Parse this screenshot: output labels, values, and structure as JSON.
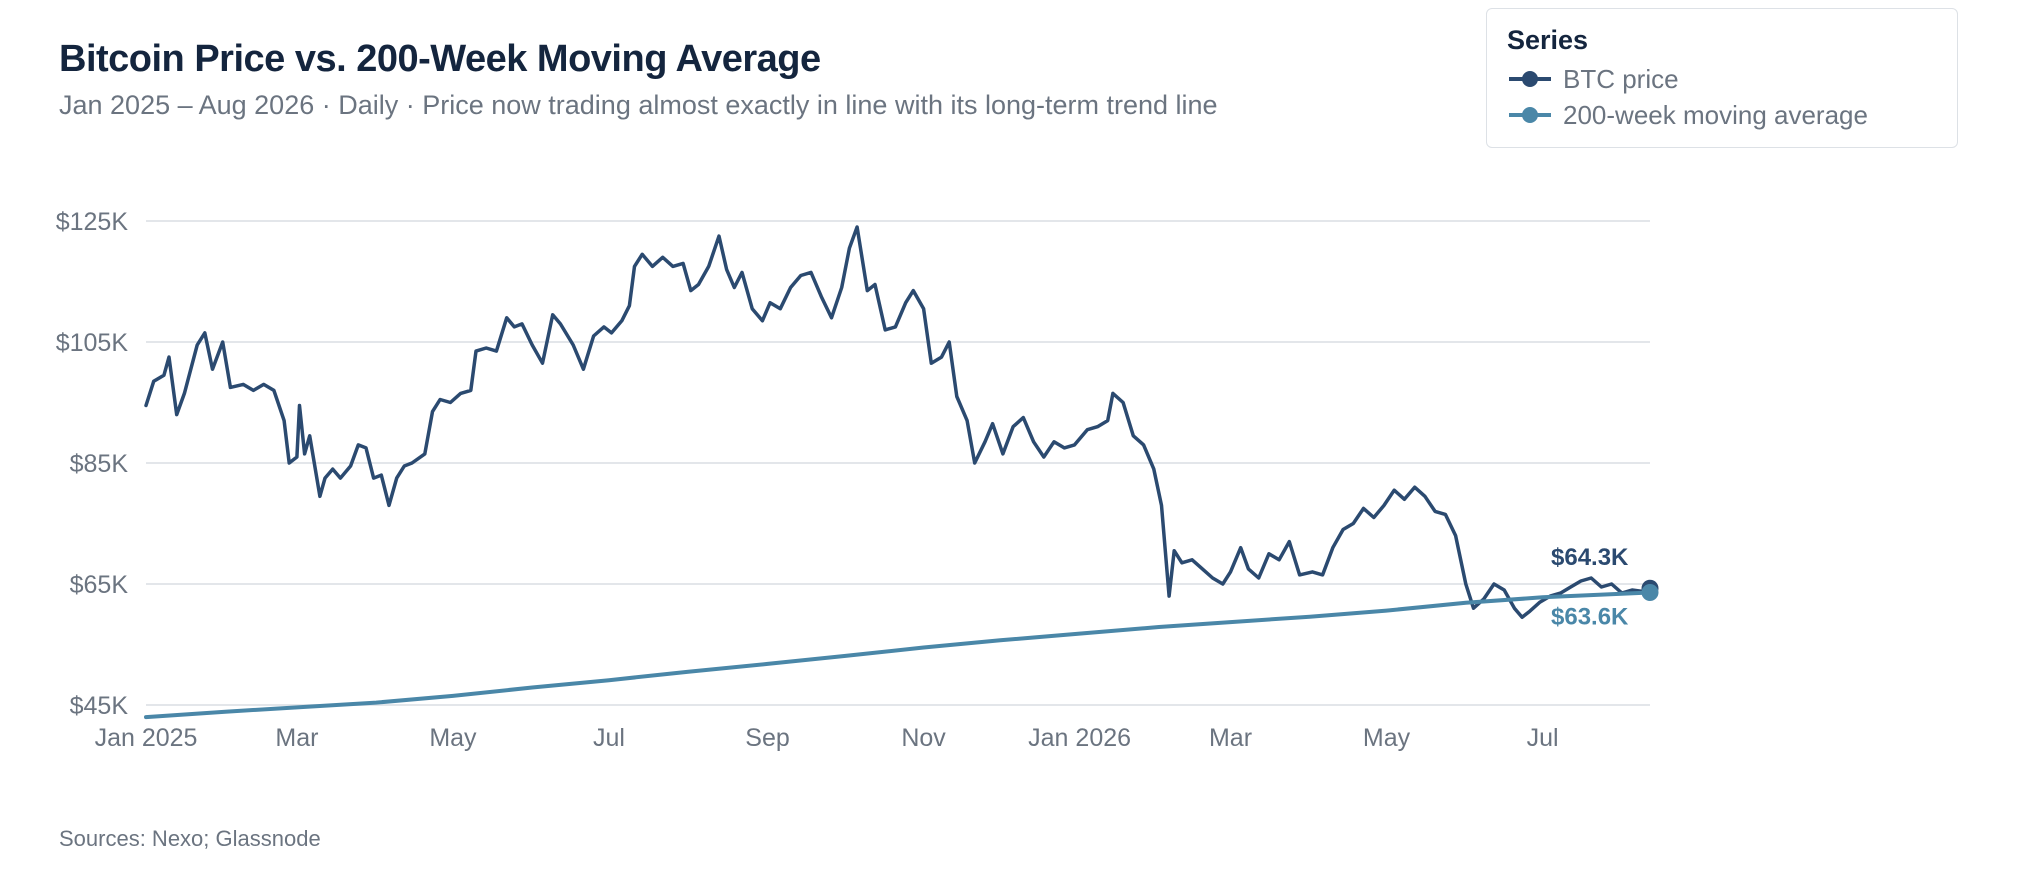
{
  "chart_data": {
    "type": "line",
    "title": "Bitcoin Price vs. 200-Week Moving Average",
    "subtitle": "Jan 2025 – Aug 2026 · Daily · Price now trading almost exactly in line with its long-term trend line",
    "source": "Sources: Nexo; Glassnode",
    "legend_title": "Series",
    "legend_position": "top-right",
    "grid": true,
    "x_range": [
      "2025-01-01",
      "2026-08-12"
    ],
    "y_range": [
      45000,
      125000
    ],
    "y_ticks": [
      {
        "value": 125000,
        "label": "$125K"
      },
      {
        "value": 105000,
        "label": "$105K"
      },
      {
        "value": 85000,
        "label": "$85K"
      },
      {
        "value": 65000,
        "label": "$65K"
      },
      {
        "value": 45000,
        "label": "$45K"
      }
    ],
    "x_ticks": [
      {
        "value": "2025-01-01",
        "label": "Jan 2025"
      },
      {
        "value": "2025-03-01",
        "label": "Mar"
      },
      {
        "value": "2025-05-01",
        "label": "May"
      },
      {
        "value": "2025-07-01",
        "label": "Jul"
      },
      {
        "value": "2025-09-01",
        "label": "Sep"
      },
      {
        "value": "2025-11-01",
        "label": "Nov"
      },
      {
        "value": "2026-01-01",
        "label": "Jan 2026"
      },
      {
        "value": "2026-03-01",
        "label": "Mar"
      },
      {
        "value": "2026-05-01",
        "label": "May"
      },
      {
        "value": "2026-07-01",
        "label": "Jul"
      }
    ],
    "series": [
      {
        "name": "BTC price",
        "color": "#2b4a70",
        "end_label": "$64.3K",
        "points": [
          [
            "2025-01-01",
            94500
          ],
          [
            "2025-01-04",
            98500
          ],
          [
            "2025-01-08",
            99500
          ],
          [
            "2025-01-10",
            102500
          ],
          [
            "2025-01-13",
            93000
          ],
          [
            "2025-01-16",
            96500
          ],
          [
            "2025-01-21",
            104500
          ],
          [
            "2025-01-24",
            106500
          ],
          [
            "2025-01-27",
            100500
          ],
          [
            "2025-01-31",
            105000
          ],
          [
            "2025-02-03",
            97500
          ],
          [
            "2025-02-08",
            98000
          ],
          [
            "2025-02-12",
            97000
          ],
          [
            "2025-02-16",
            98000
          ],
          [
            "2025-02-20",
            97000
          ],
          [
            "2025-02-24",
            92000
          ],
          [
            "2025-02-26",
            85000
          ],
          [
            "2025-03-01",
            86000
          ],
          [
            "2025-03-02",
            94500
          ],
          [
            "2025-03-04",
            86500
          ],
          [
            "2025-03-06",
            89500
          ],
          [
            "2025-03-10",
            79500
          ],
          [
            "2025-03-12",
            82500
          ],
          [
            "2025-03-15",
            84000
          ],
          [
            "2025-03-18",
            82500
          ],
          [
            "2025-03-22",
            84500
          ],
          [
            "2025-03-25",
            88000
          ],
          [
            "2025-03-28",
            87500
          ],
          [
            "2025-03-31",
            82500
          ],
          [
            "2025-04-03",
            83000
          ],
          [
            "2025-04-06",
            78000
          ],
          [
            "2025-04-09",
            82500
          ],
          [
            "2025-04-12",
            84500
          ],
          [
            "2025-04-15",
            85000
          ],
          [
            "2025-04-20",
            86500
          ],
          [
            "2025-04-23",
            93500
          ],
          [
            "2025-04-26",
            95500
          ],
          [
            "2025-04-30",
            95000
          ],
          [
            "2025-05-04",
            96500
          ],
          [
            "2025-05-08",
            97000
          ],
          [
            "2025-05-10",
            103500
          ],
          [
            "2025-05-14",
            104000
          ],
          [
            "2025-05-18",
            103500
          ],
          [
            "2025-05-22",
            109000
          ],
          [
            "2025-05-25",
            107500
          ],
          [
            "2025-05-28",
            108000
          ],
          [
            "2025-06-01",
            104500
          ],
          [
            "2025-06-05",
            101500
          ],
          [
            "2025-06-09",
            109500
          ],
          [
            "2025-06-12",
            108000
          ],
          [
            "2025-06-17",
            104500
          ],
          [
            "2025-06-21",
            100500
          ],
          [
            "2025-06-25",
            106000
          ],
          [
            "2025-06-29",
            107500
          ],
          [
            "2025-07-02",
            106500
          ],
          [
            "2025-07-06",
            108500
          ],
          [
            "2025-07-09",
            111000
          ],
          [
            "2025-07-11",
            117500
          ],
          [
            "2025-07-14",
            119500
          ],
          [
            "2025-07-18",
            117500
          ],
          [
            "2025-07-22",
            119000
          ],
          [
            "2025-07-26",
            117500
          ],
          [
            "2025-07-30",
            118000
          ],
          [
            "2025-08-02",
            113500
          ],
          [
            "2025-08-05",
            114500
          ],
          [
            "2025-08-09",
            117500
          ],
          [
            "2025-08-13",
            122500
          ],
          [
            "2025-08-16",
            117000
          ],
          [
            "2025-08-19",
            114000
          ],
          [
            "2025-08-22",
            116500
          ],
          [
            "2025-08-26",
            110500
          ],
          [
            "2025-08-30",
            108500
          ],
          [
            "2025-09-02",
            111500
          ],
          [
            "2025-09-06",
            110500
          ],
          [
            "2025-09-10",
            114000
          ],
          [
            "2025-09-14",
            116000
          ],
          [
            "2025-09-18",
            116500
          ],
          [
            "2025-09-22",
            112500
          ],
          [
            "2025-09-26",
            109000
          ],
          [
            "2025-09-30",
            114000
          ],
          [
            "2025-10-03",
            120500
          ],
          [
            "2025-10-06",
            124000
          ],
          [
            "2025-10-10",
            113500
          ],
          [
            "2025-10-13",
            114500
          ],
          [
            "2025-10-17",
            107000
          ],
          [
            "2025-10-21",
            107500
          ],
          [
            "2025-10-25",
            111500
          ],
          [
            "2025-10-28",
            113500
          ],
          [
            "2025-11-01",
            110500
          ],
          [
            "2025-11-04",
            101500
          ],
          [
            "2025-11-08",
            102500
          ],
          [
            "2025-11-11",
            105000
          ],
          [
            "2025-11-14",
            96000
          ],
          [
            "2025-11-18",
            92000
          ],
          [
            "2025-11-21",
            85000
          ],
          [
            "2025-11-25",
            88500
          ],
          [
            "2025-11-28",
            91500
          ],
          [
            "2025-12-02",
            86500
          ],
          [
            "2025-12-06",
            91000
          ],
          [
            "2025-12-10",
            92500
          ],
          [
            "2025-12-14",
            88500
          ],
          [
            "2025-12-18",
            86000
          ],
          [
            "2025-12-22",
            88500
          ],
          [
            "2025-12-26",
            87500
          ],
          [
            "2025-12-30",
            88000
          ],
          [
            "2026-01-04",
            90500
          ],
          [
            "2026-01-08",
            91000
          ],
          [
            "2026-01-12",
            92000
          ],
          [
            "2026-01-14",
            96500
          ],
          [
            "2026-01-18",
            95000
          ],
          [
            "2026-01-22",
            89500
          ],
          [
            "2026-01-26",
            88000
          ],
          [
            "2026-01-30",
            84000
          ],
          [
            "2026-02-02",
            78000
          ],
          [
            "2026-02-05",
            63000
          ],
          [
            "2026-02-07",
            70500
          ],
          [
            "2026-02-10",
            68500
          ],
          [
            "2026-02-14",
            69000
          ],
          [
            "2026-02-18",
            67500
          ],
          [
            "2026-02-22",
            66000
          ],
          [
            "2026-02-26",
            65000
          ],
          [
            "2026-03-01",
            67000
          ],
          [
            "2026-03-05",
            71000
          ],
          [
            "2026-03-08",
            67500
          ],
          [
            "2026-03-12",
            66000
          ],
          [
            "2026-03-16",
            70000
          ],
          [
            "2026-03-20",
            69000
          ],
          [
            "2026-03-24",
            72000
          ],
          [
            "2026-03-28",
            66500
          ],
          [
            "2026-04-02",
            67000
          ],
          [
            "2026-04-06",
            66500
          ],
          [
            "2026-04-10",
            71000
          ],
          [
            "2026-04-14",
            74000
          ],
          [
            "2026-04-18",
            75000
          ],
          [
            "2026-04-22",
            77500
          ],
          [
            "2026-04-26",
            76000
          ],
          [
            "2026-04-30",
            78000
          ],
          [
            "2026-05-04",
            80500
          ],
          [
            "2026-05-08",
            79000
          ],
          [
            "2026-05-12",
            81000
          ],
          [
            "2026-05-16",
            79500
          ],
          [
            "2026-05-20",
            77000
          ],
          [
            "2026-05-24",
            76500
          ],
          [
            "2026-05-28",
            73000
          ],
          [
            "2026-06-01",
            65000
          ],
          [
            "2026-06-04",
            61000
          ],
          [
            "2026-06-08",
            62500
          ],
          [
            "2026-06-12",
            65000
          ],
          [
            "2026-06-16",
            64000
          ],
          [
            "2026-06-20",
            61000
          ],
          [
            "2026-06-23",
            59500
          ],
          [
            "2026-06-26",
            60500
          ],
          [
            "2026-06-30",
            62000
          ],
          [
            "2026-07-04",
            63000
          ],
          [
            "2026-07-08",
            63500
          ],
          [
            "2026-07-12",
            64500
          ],
          [
            "2026-07-16",
            65500
          ],
          [
            "2026-07-20",
            66000
          ],
          [
            "2026-07-24",
            64500
          ],
          [
            "2026-07-28",
            65000
          ],
          [
            "2026-08-01",
            63500
          ],
          [
            "2026-08-05",
            64000
          ],
          [
            "2026-08-09",
            63800
          ],
          [
            "2026-08-12",
            64300
          ]
        ]
      },
      {
        "name": "200-week moving average",
        "color": "#4a87a8",
        "end_label": "$63.6K",
        "points": [
          [
            "2025-01-01",
            43000
          ],
          [
            "2025-02-01",
            43900
          ],
          [
            "2025-03-01",
            44600
          ],
          [
            "2025-04-01",
            45400
          ],
          [
            "2025-05-01",
            46500
          ],
          [
            "2025-06-01",
            47900
          ],
          [
            "2025-07-01",
            49100
          ],
          [
            "2025-08-01",
            50500
          ],
          [
            "2025-09-01",
            51800
          ],
          [
            "2025-10-01",
            53100
          ],
          [
            "2025-11-01",
            54500
          ],
          [
            "2025-12-01",
            55700
          ],
          [
            "2026-01-01",
            56800
          ],
          [
            "2026-02-01",
            57900
          ],
          [
            "2026-03-01",
            58700
          ],
          [
            "2026-04-01",
            59600
          ],
          [
            "2026-05-01",
            60600
          ],
          [
            "2026-06-01",
            61900
          ],
          [
            "2026-07-01",
            62800
          ],
          [
            "2026-08-12",
            63600
          ]
        ]
      }
    ]
  }
}
